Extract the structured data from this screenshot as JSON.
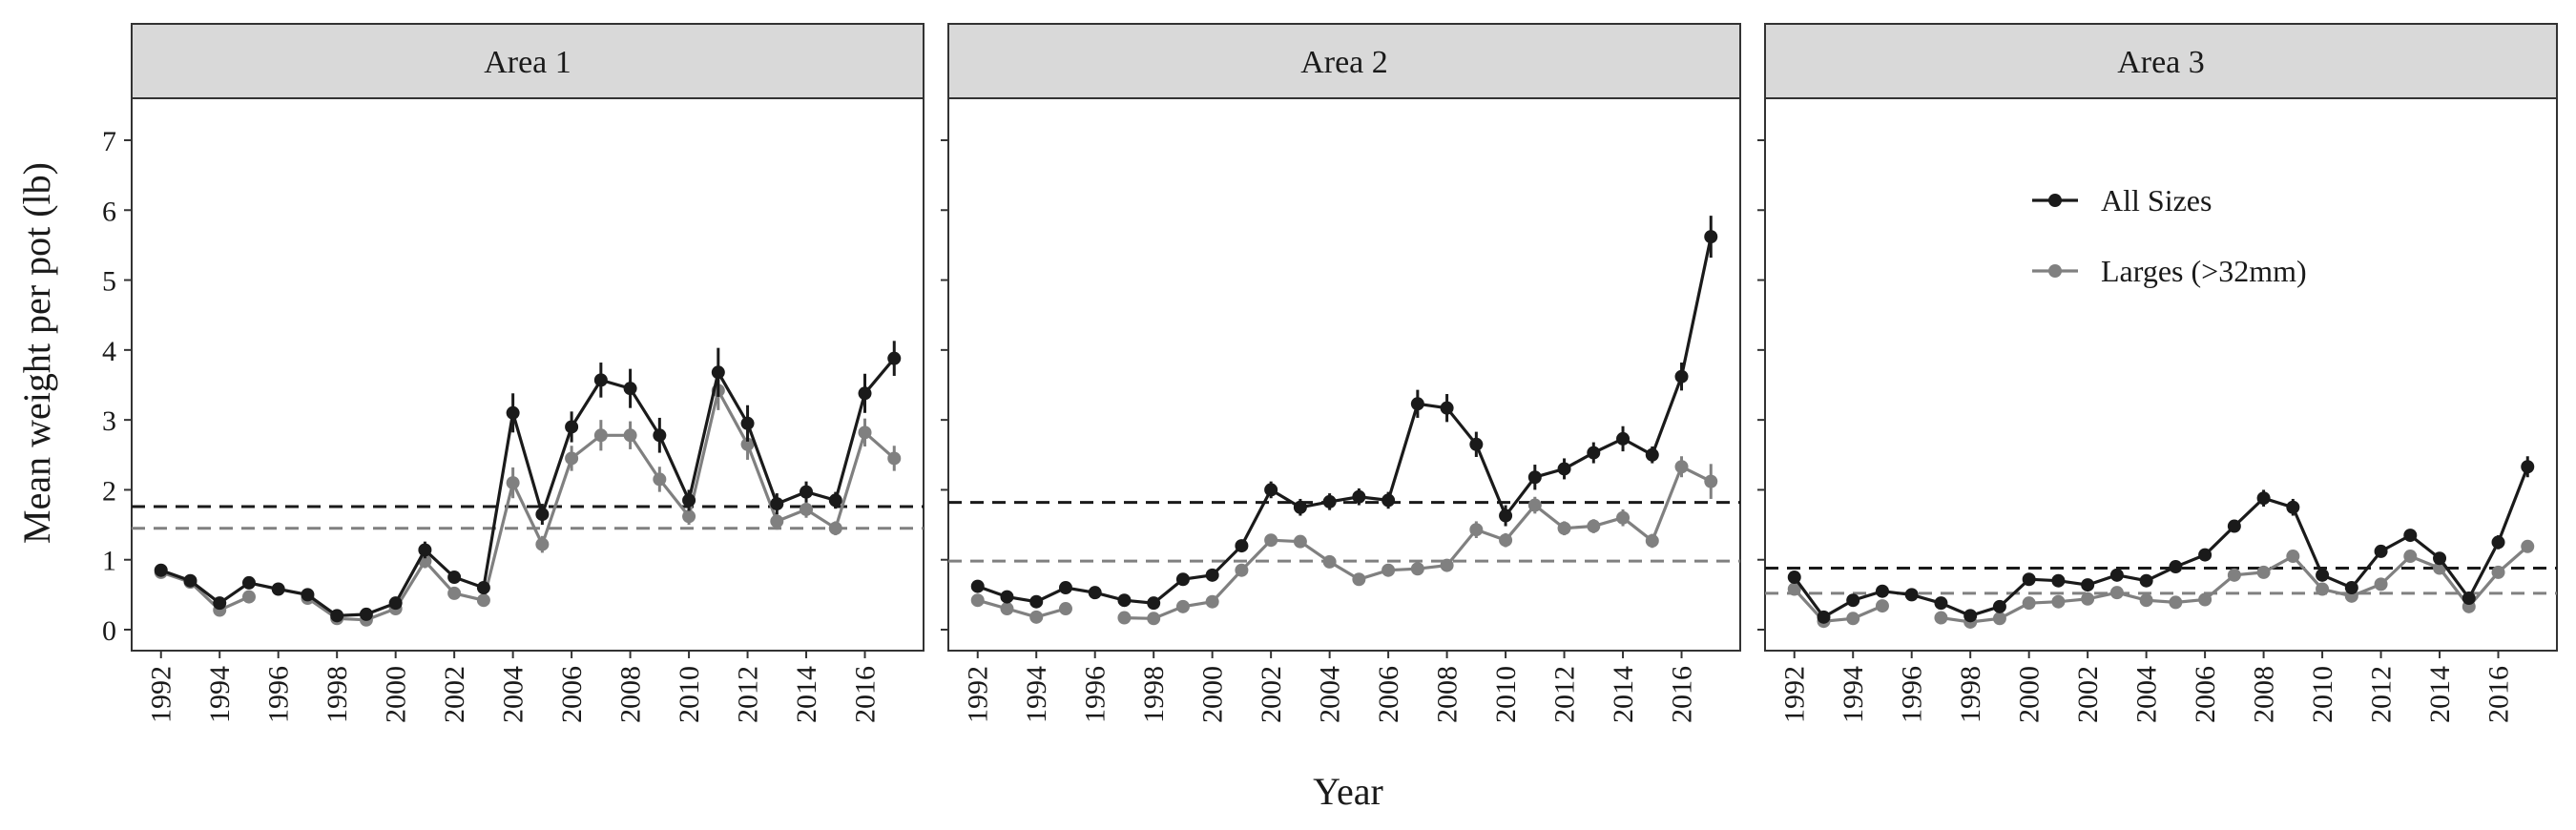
{
  "chart_data": {
    "type": "line",
    "ylabel": "Mean weight per pot (lb)",
    "xlabel": "Year",
    "ylim": [
      -0.3,
      7.6
    ],
    "xlim": [
      1991,
      2018
    ],
    "yticks": [
      0,
      1,
      2,
      3,
      4,
      5,
      6,
      7
    ],
    "xticks": [
      1992,
      1994,
      1996,
      1998,
      2000,
      2002,
      2004,
      2006,
      2008,
      2010,
      2012,
      2014,
      2016
    ],
    "grid": false,
    "legend": {
      "placement": "top-right (Area 3 panel)",
      "entries": [
        "All Sizes",
        "Larges (>32mm)"
      ]
    },
    "series_colors": {
      "all": "#1a1a1a",
      "large": "#808080"
    },
    "panels": [
      {
        "title": "Area 1",
        "series": [
          {
            "name": "All Sizes",
            "points": [
              [
                1992,
                0.85
              ],
              [
                1993,
                0.7
              ],
              [
                1994,
                0.38
              ],
              [
                1995,
                0.67
              ],
              [
                1996,
                0.58
              ],
              [
                1997,
                0.5
              ],
              [
                1998,
                0.2
              ],
              [
                1999,
                0.22
              ],
              [
                2000,
                0.38
              ],
              [
                2001,
                1.14
              ],
              [
                2002,
                0.75
              ],
              [
                2003,
                0.6
              ],
              [
                2004,
                3.1
              ],
              [
                2005,
                1.65
              ],
              [
                2006,
                2.9
              ],
              [
                2007,
                3.57
              ],
              [
                2008,
                3.45
              ],
              [
                2009,
                2.78
              ],
              [
                2010,
                1.85
              ],
              [
                2011,
                3.68
              ],
              [
                2012,
                2.95
              ],
              [
                2013,
                1.8
              ],
              [
                2014,
                1.97
              ],
              [
                2015,
                1.85
              ],
              [
                2016,
                3.38
              ],
              [
                2017,
                3.88
              ]
            ],
            "error": [
              0.08,
              0.07,
              0.05,
              0.06,
              0.05,
              0.06,
              0.04,
              0.04,
              0.05,
              0.12,
              0.08,
              0.06,
              0.28,
              0.15,
              0.22,
              0.25,
              0.28,
              0.25,
              0.15,
              0.35,
              0.26,
              0.15,
              0.15,
              0.12,
              0.28,
              0.25
            ]
          },
          {
            "name": "Larges (>32mm)",
            "points": [
              [
                1992,
                0.82
              ],
              [
                1993,
                0.68
              ],
              [
                1994,
                0.28
              ],
              [
                1995,
                0.47
              ],
              [
                1996,
                null
              ],
              [
                1997,
                0.45
              ],
              [
                1998,
                0.16
              ],
              [
                1999,
                0.14
              ],
              [
                2000,
                0.3
              ],
              [
                2001,
                0.98
              ],
              [
                2002,
                0.52
              ],
              [
                2003,
                0.42
              ],
              [
                2004,
                2.1
              ],
              [
                2005,
                1.22
              ],
              [
                2006,
                2.45
              ],
              [
                2007,
                2.78
              ],
              [
                2008,
                2.78
              ],
              [
                2009,
                2.15
              ],
              [
                2010,
                1.62
              ],
              [
                2011,
                3.42
              ],
              [
                2012,
                2.65
              ],
              [
                2013,
                1.55
              ],
              [
                2014,
                1.72
              ],
              [
                2015,
                1.45
              ],
              [
                2016,
                2.82
              ],
              [
                2017,
                2.45
              ]
            ],
            "error": [
              0.07,
              0.06,
              0.04,
              0.05,
              null,
              0.05,
              0.03,
              0.03,
              0.04,
              0.1,
              0.06,
              0.05,
              0.22,
              0.12,
              0.18,
              0.22,
              0.2,
              0.18,
              0.12,
              0.28,
              0.22,
              0.12,
              0.12,
              0.1,
              0.2,
              0.18
            ]
          }
        ],
        "reference_lines": {
          "all": 1.76,
          "large": 1.45
        }
      },
      {
        "title": "Area 2",
        "series": [
          {
            "name": "All Sizes",
            "points": [
              [
                1992,
                0.62
              ],
              [
                1993,
                0.47
              ],
              [
                1994,
                0.4
              ],
              [
                1995,
                0.6
              ],
              [
                1996,
                0.53
              ],
              [
                1997,
                0.42
              ],
              [
                1998,
                0.38
              ],
              [
                1999,
                0.72
              ],
              [
                2000,
                0.78
              ],
              [
                2001,
                1.2
              ],
              [
                2002,
                2.0
              ],
              [
                2003,
                1.75
              ],
              [
                2004,
                1.83
              ],
              [
                2005,
                1.9
              ],
              [
                2006,
                1.85
              ],
              [
                2007,
                3.23
              ],
              [
                2008,
                3.17
              ],
              [
                2009,
                2.65
              ],
              [
                2010,
                1.63
              ],
              [
                2011,
                2.18
              ],
              [
                2012,
                2.3
              ],
              [
                2013,
                2.53
              ],
              [
                2014,
                2.73
              ],
              [
                2015,
                2.5
              ],
              [
                2016,
                3.62
              ],
              [
                2017,
                5.62
              ]
            ],
            "error": [
              0.05,
              0.04,
              0.04,
              0.05,
              0.05,
              0.04,
              0.04,
              0.06,
              0.06,
              0.08,
              0.12,
              0.12,
              0.12,
              0.12,
              0.12,
              0.2,
              0.2,
              0.18,
              0.15,
              0.18,
              0.15,
              0.15,
              0.18,
              0.12,
              0.2,
              0.3
            ]
          },
          {
            "name": "Larges (>32mm)",
            "points": [
              [
                1992,
                0.42
              ],
              [
                1993,
                0.3
              ],
              [
                1994,
                0.18
              ],
              [
                1995,
                0.3
              ],
              [
                1996,
                null
              ],
              [
                1997,
                0.17
              ],
              [
                1998,
                0.16
              ],
              [
                1999,
                0.33
              ],
              [
                2000,
                0.4
              ],
              [
                2001,
                0.85
              ],
              [
                2002,
                1.28
              ],
              [
                2003,
                1.26
              ],
              [
                2004,
                0.97
              ],
              [
                2005,
                0.72
              ],
              [
                2006,
                0.85
              ],
              [
                2007,
                0.87
              ],
              [
                2008,
                0.92
              ],
              [
                2009,
                1.43
              ],
              [
                2010,
                1.28
              ],
              [
                2011,
                1.78
              ],
              [
                2012,
                1.45
              ],
              [
                2013,
                1.48
              ],
              [
                2014,
                1.6
              ],
              [
                2015,
                1.27
              ],
              [
                2016,
                2.33
              ],
              [
                2017,
                2.12
              ]
            ],
            "error": [
              0.04,
              0.03,
              0.03,
              0.03,
              null,
              0.03,
              0.03,
              0.04,
              0.04,
              0.06,
              0.08,
              0.08,
              0.07,
              0.06,
              0.06,
              0.08,
              0.08,
              0.12,
              0.1,
              0.12,
              0.1,
              0.1,
              0.12,
              0.1,
              0.15,
              0.25
            ]
          }
        ],
        "reference_lines": {
          "all": 1.82,
          "large": 0.98
        }
      },
      {
        "title": "Area 3",
        "series": [
          {
            "name": "All Sizes",
            "points": [
              [
                1992,
                0.75
              ],
              [
                1993,
                0.18
              ],
              [
                1994,
                0.42
              ],
              [
                1995,
                0.55
              ],
              [
                1996,
                0.5
              ],
              [
                1997,
                0.38
              ],
              [
                1998,
                0.2
              ],
              [
                1999,
                0.33
              ],
              [
                2000,
                0.72
              ],
              [
                2001,
                0.7
              ],
              [
                2002,
                0.64
              ],
              [
                2003,
                0.78
              ],
              [
                2004,
                0.7
              ],
              [
                2005,
                0.9
              ],
              [
                2006,
                1.07
              ],
              [
                2007,
                1.48
              ],
              [
                2008,
                1.88
              ],
              [
                2009,
                1.75
              ],
              [
                2010,
                0.78
              ],
              [
                2011,
                0.6
              ],
              [
                2012,
                1.12
              ],
              [
                2013,
                1.35
              ],
              [
                2014,
                1.02
              ],
              [
                2015,
                0.45
              ],
              [
                2016,
                1.25
              ],
              [
                2017,
                2.33
              ]
            ],
            "error": [
              0.06,
              0.03,
              0.04,
              0.04,
              0.04,
              0.04,
              0.03,
              0.04,
              0.05,
              0.05,
              0.05,
              0.05,
              0.05,
              0.06,
              0.06,
              0.08,
              0.12,
              0.12,
              0.06,
              0.05,
              0.08,
              0.08,
              0.08,
              0.05,
              0.1,
              0.15
            ]
          },
          {
            "name": "Larges (>32mm)",
            "points": [
              [
                1992,
                0.58
              ],
              [
                1993,
                0.12
              ],
              [
                1994,
                0.16
              ],
              [
                1995,
                0.34
              ],
              [
                1996,
                null
              ],
              [
                1997,
                0.17
              ],
              [
                1998,
                0.11
              ],
              [
                1999,
                0.16
              ],
              [
                2000,
                0.38
              ],
              [
                2001,
                0.4
              ],
              [
                2002,
                0.44
              ],
              [
                2003,
                0.53
              ],
              [
                2004,
                0.42
              ],
              [
                2005,
                0.39
              ],
              [
                2006,
                0.43
              ],
              [
                2007,
                0.78
              ],
              [
                2008,
                0.82
              ],
              [
                2009,
                1.05
              ],
              [
                2010,
                0.58
              ],
              [
                2011,
                0.48
              ],
              [
                2012,
                0.65
              ],
              [
                2013,
                1.05
              ],
              [
                2014,
                0.88
              ],
              [
                2015,
                0.33
              ],
              [
                2016,
                0.82
              ],
              [
                2017,
                1.19
              ]
            ],
            "error": [
              0.04,
              0.02,
              0.03,
              0.03,
              null,
              0.03,
              0.02,
              0.03,
              0.04,
              0.04,
              0.04,
              0.04,
              0.04,
              0.04,
              0.04,
              0.06,
              0.06,
              0.08,
              0.05,
              0.04,
              0.05,
              0.08,
              0.06,
              0.04,
              0.06,
              0.08
            ]
          }
        ],
        "reference_lines": {
          "all": 0.88,
          "large": 0.52
        }
      }
    ]
  }
}
